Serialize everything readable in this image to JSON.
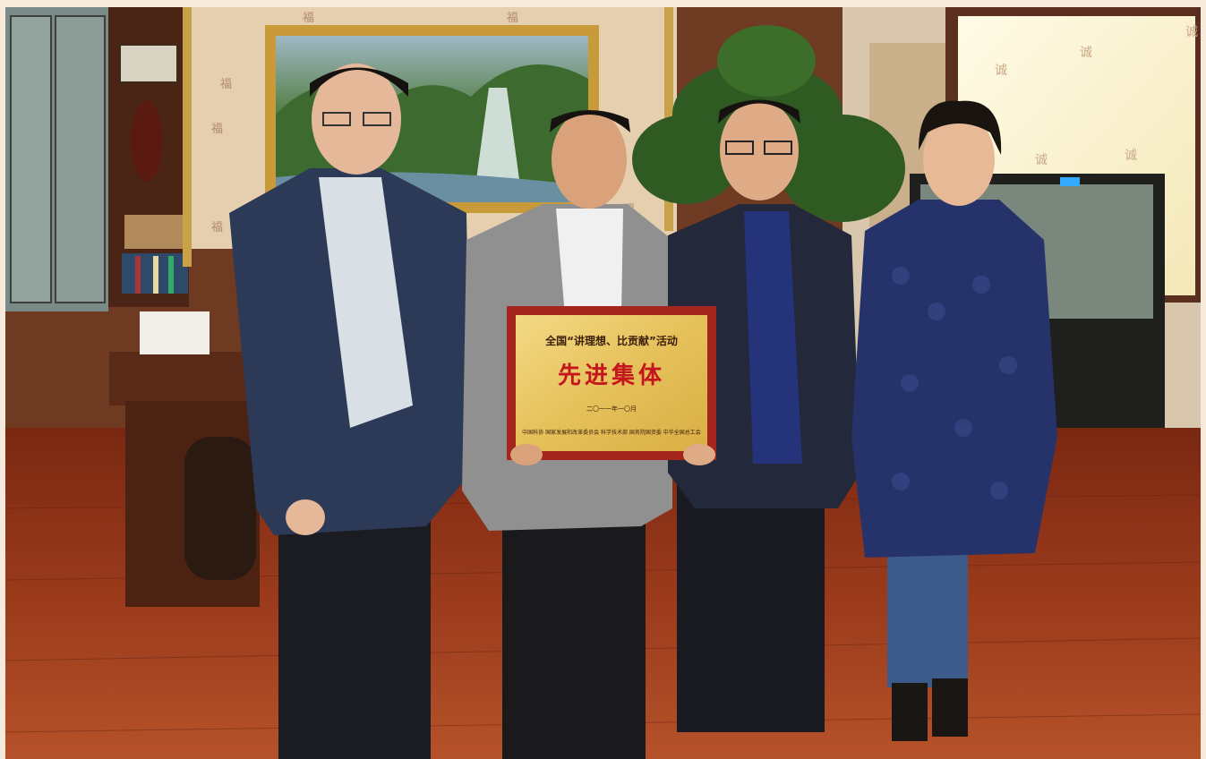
{
  "photo": {
    "scene": "office-award-ceremony"
  },
  "plaque": {
    "title": "全国“讲理想、比贡献”活动",
    "main_text": "先进集体",
    "date": "二〇一一年一〇月",
    "orgs": "中国科协  国家发展和改革委员会  科学技术部  国务院国资委  中华全国总工会"
  },
  "wall_characters": [
    "福",
    "福",
    "福",
    "福",
    "福",
    "福"
  ],
  "blind_characters": [
    "诚",
    "诚",
    "诚",
    "诚",
    "诚"
  ],
  "colors": {
    "floor": "#8a2f17",
    "wallpaper": "#e6cfae",
    "plaque_frame": "#a3251c",
    "plaque_face": "#e8c766"
  }
}
